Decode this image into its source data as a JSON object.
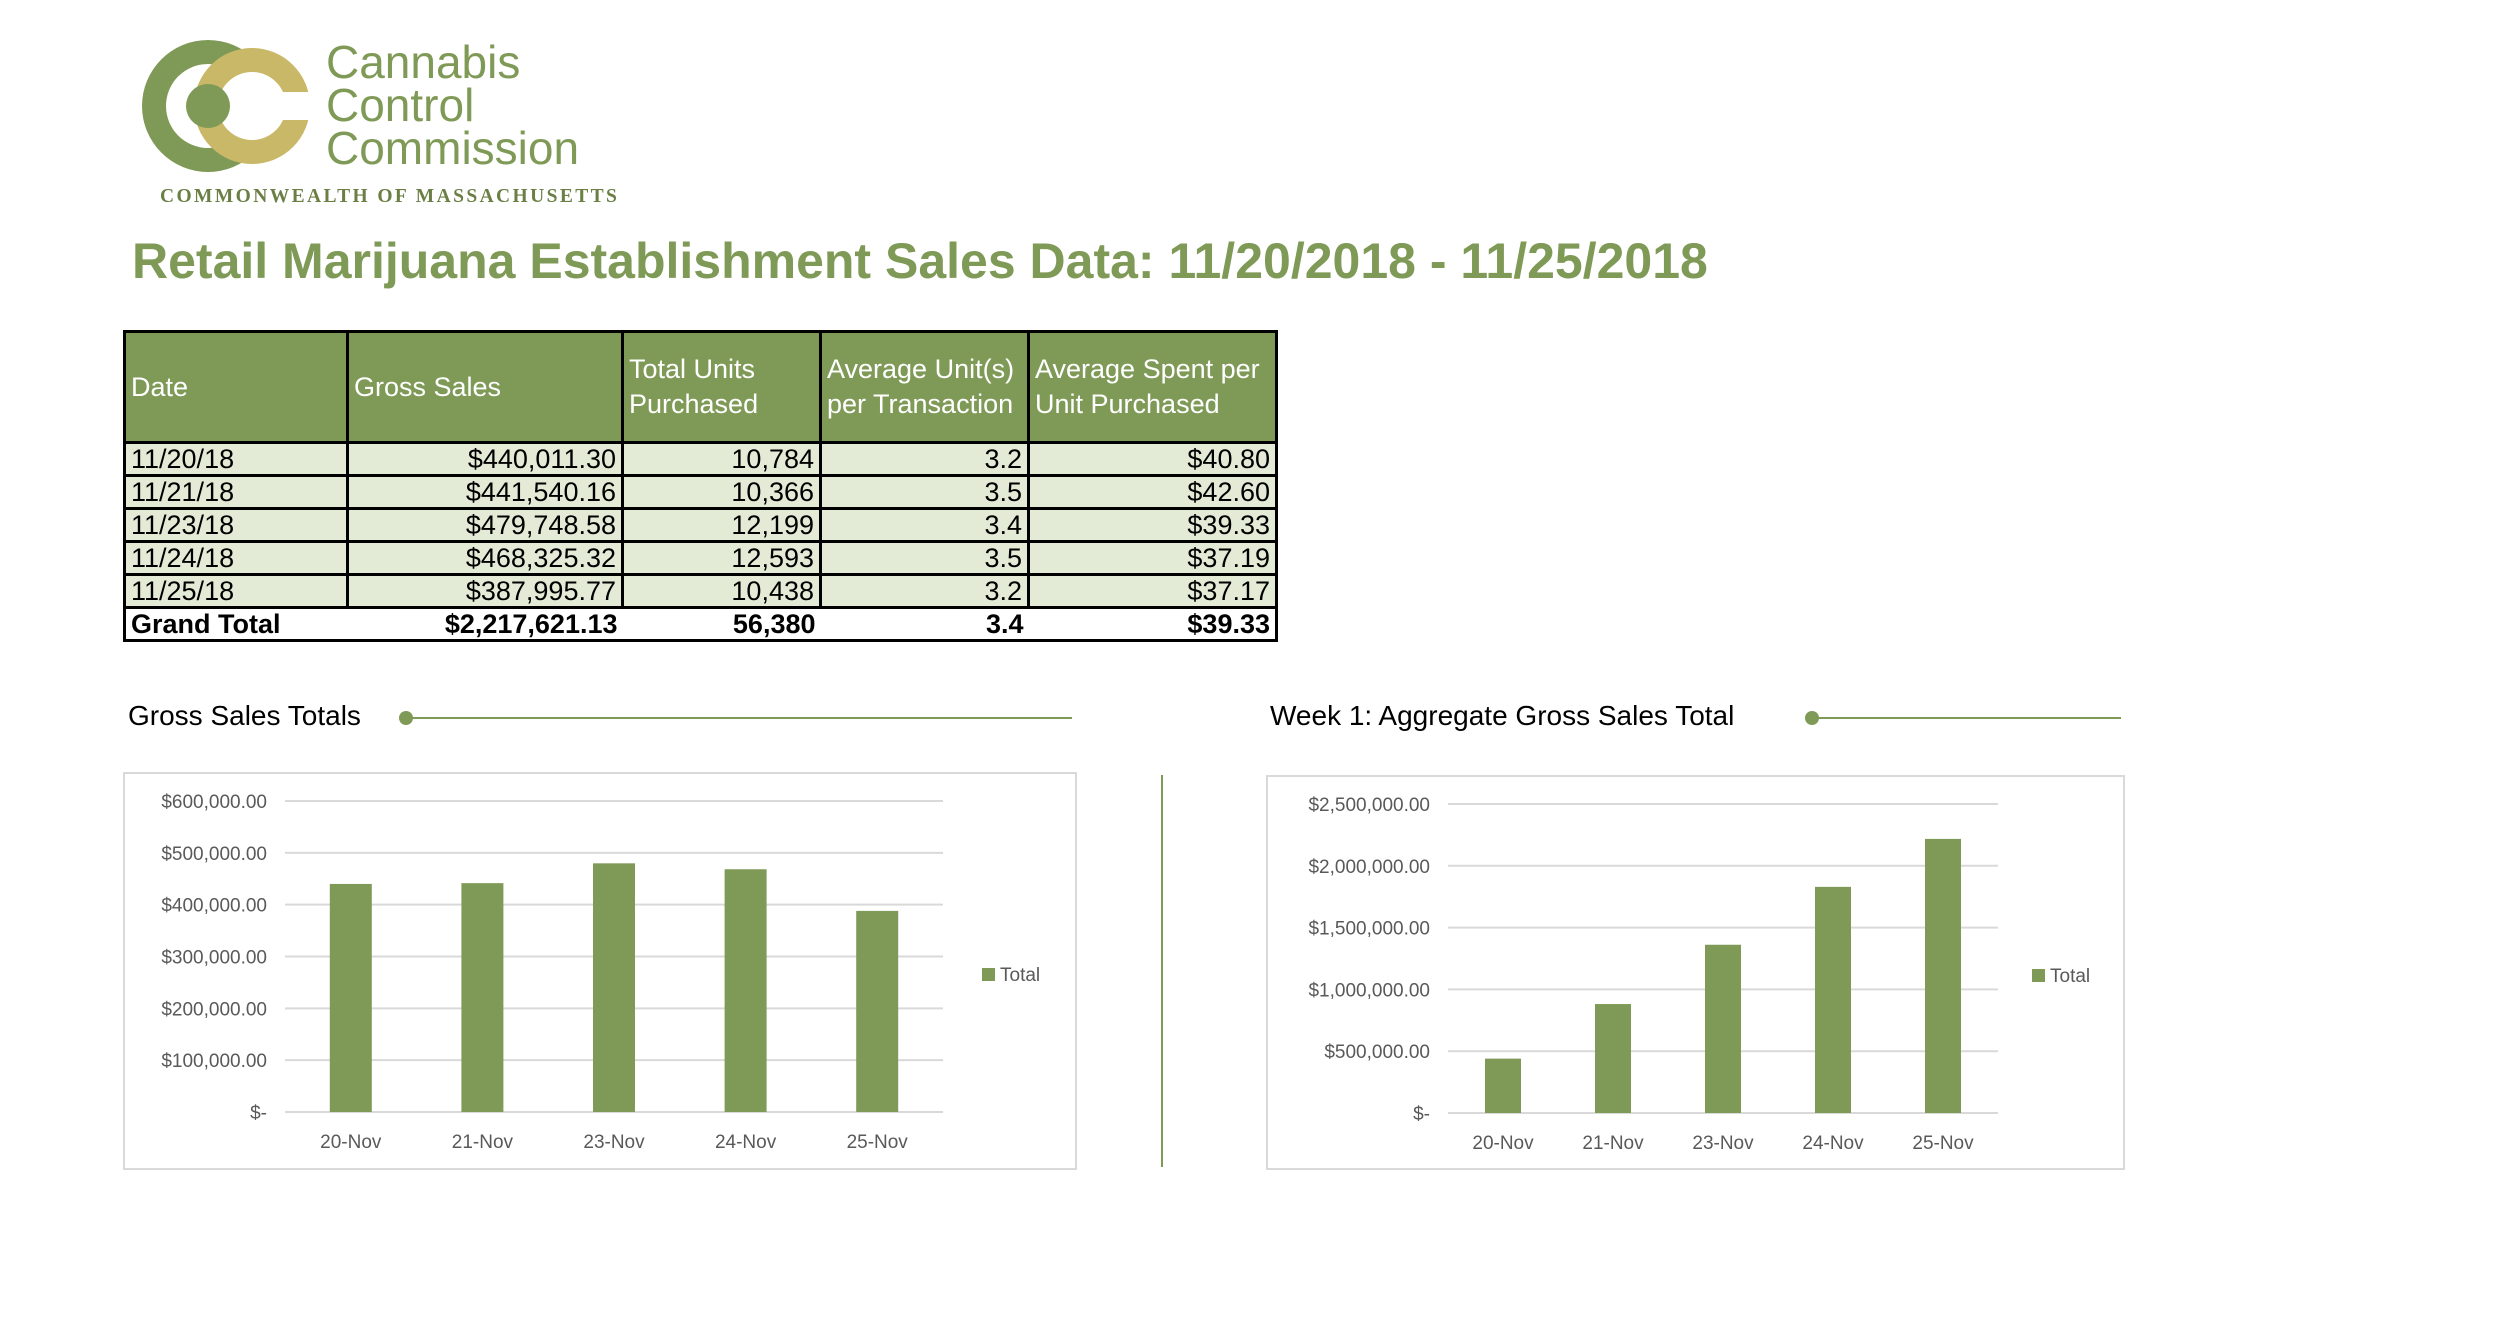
{
  "logo": {
    "lines": [
      "Cannabis",
      "Control",
      "Commission"
    ],
    "tagline": "COMMONWEALTH OF MASSACHUSETTS"
  },
  "title": "Retail Marijuana Establishment Sales Data: 11/20/2018 - 11/25/2018",
  "table": {
    "headers": [
      "Date",
      "Gross Sales",
      "Total Units Purchased",
      "Average Unit(s) per Transaction",
      "Average Spent per Unit Purchased"
    ],
    "rows": [
      [
        "11/20/18",
        "$440,011.30",
        "10,784",
        "3.2",
        "$40.80"
      ],
      [
        "11/21/18",
        "$441,540.16",
        "10,366",
        "3.5",
        "$42.60"
      ],
      [
        "11/23/18",
        "$479,748.58",
        "12,199",
        "3.4",
        "$39.33"
      ],
      [
        "11/24/18",
        "$468,325.32",
        "12,593",
        "3.5",
        "$37.19"
      ],
      [
        "11/25/18",
        "$387,995.77",
        "10,438",
        "3.2",
        "$37.17"
      ]
    ],
    "total": [
      "Grand Total",
      "$2,217,621.13",
      "56,380",
      "3.4",
      "$39.33"
    ]
  },
  "sections": {
    "left_title": "Gross Sales Totals",
    "right_title": "Week 1: Aggregate Gross Sales Total"
  },
  "colors": {
    "accent": "#7f9a56",
    "row_fill": "#e3ebd6",
    "grid": "#d9d9d9"
  },
  "chart_data": [
    {
      "type": "bar",
      "title": "Gross Sales Totals",
      "categories": [
        "20-Nov",
        "21-Nov",
        "23-Nov",
        "24-Nov",
        "25-Nov"
      ],
      "series": [
        {
          "name": "Total",
          "values": [
            440011.3,
            441540.16,
            479748.58,
            468325.32,
            387995.77
          ]
        }
      ],
      "ylim": [
        0,
        600000
      ],
      "yticks": [
        0,
        100000,
        200000,
        300000,
        400000,
        500000,
        600000
      ],
      "ytick_labels": [
        "$-",
        "$100,000.00",
        "$200,000.00",
        "$300,000.00",
        "$400,000.00",
        "$500,000.00",
        "$600,000.00"
      ],
      "legend": "right",
      "grid": true
    },
    {
      "type": "bar",
      "title": "Week 1: Aggregate Gross Sales Total",
      "categories": [
        "20-Nov",
        "21-Nov",
        "23-Nov",
        "24-Nov",
        "25-Nov"
      ],
      "series": [
        {
          "name": "Total",
          "values": [
            440011.3,
            881551.46,
            1361300.04,
            1829625.36,
            2217621.13
          ]
        }
      ],
      "ylim": [
        0,
        2500000
      ],
      "yticks": [
        0,
        500000,
        1000000,
        1500000,
        2000000,
        2500000
      ],
      "ytick_labels": [
        "$-",
        "$500,000.00",
        "$1,000,000.00",
        "$1,500,000.00",
        "$2,000,000.00",
        "$2,500,000.00"
      ],
      "legend": "right",
      "grid": true
    }
  ]
}
